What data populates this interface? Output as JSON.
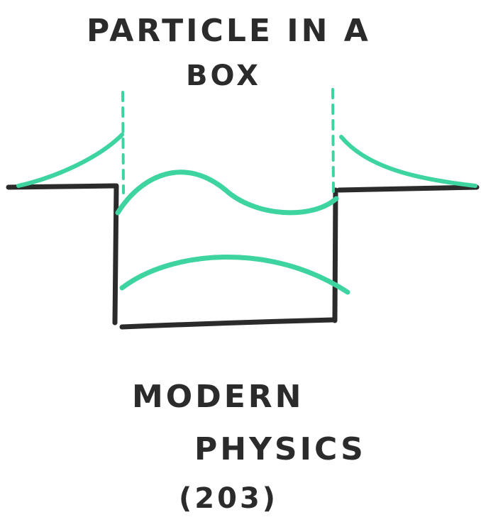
{
  "title": {
    "line1": "PARTICLE IN A",
    "line2": "BOX"
  },
  "subtitle": {
    "line1": "MODERN",
    "line2": "PHYSICS",
    "line3": "(203)"
  },
  "colors": {
    "ink": "#2b2b2b",
    "wave": "#3dd4a0"
  }
}
